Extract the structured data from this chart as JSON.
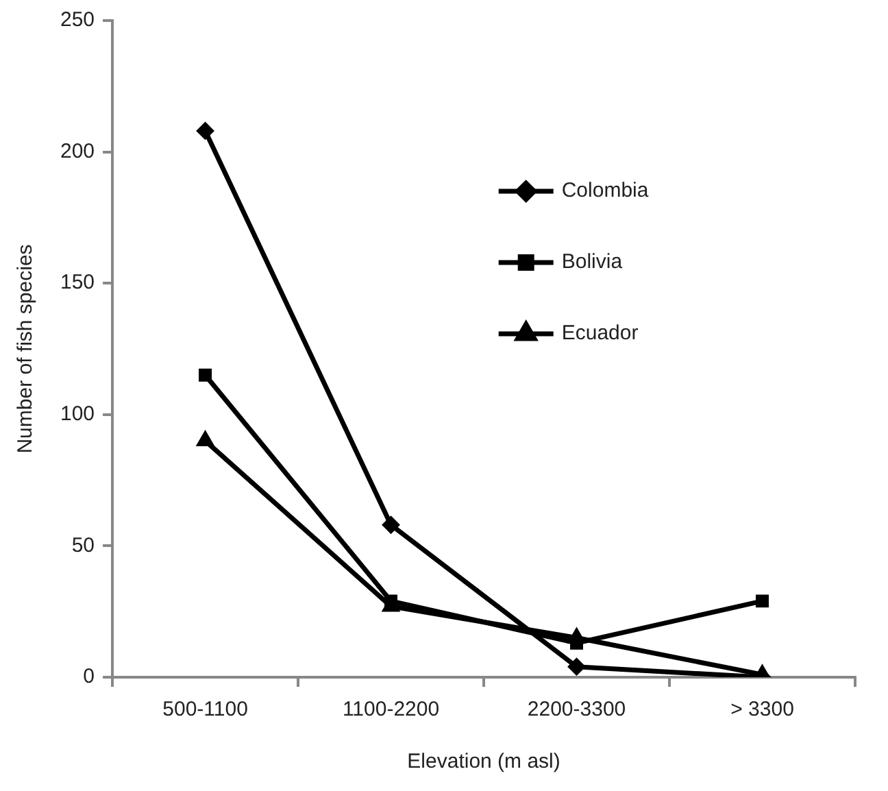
{
  "chart_data": {
    "type": "line",
    "xlabel": "Elevation (m asl)",
    "ylabel": "Number of fish species",
    "categories": [
      "500-1100",
      "1100-2200",
      "2200-3300",
      "> 3300"
    ],
    "series": [
      {
        "name": "Colombia",
        "color": "#000000",
        "marker": "diamond",
        "values": [
          208,
          58,
          4,
          0
        ]
      },
      {
        "name": "Bolivia",
        "color": "#000000",
        "marker": "square",
        "values": [
          115,
          29,
          13,
          29
        ]
      },
      {
        "name": "Ecuador",
        "color": "#000000",
        "marker": "triangle",
        "values": [
          90,
          27,
          15,
          1
        ]
      }
    ],
    "ylim": [
      0,
      250
    ],
    "yticks": [
      0,
      50,
      100,
      150,
      200,
      250
    ],
    "grid": false,
    "legend": "right",
    "line_style": "solid"
  }
}
